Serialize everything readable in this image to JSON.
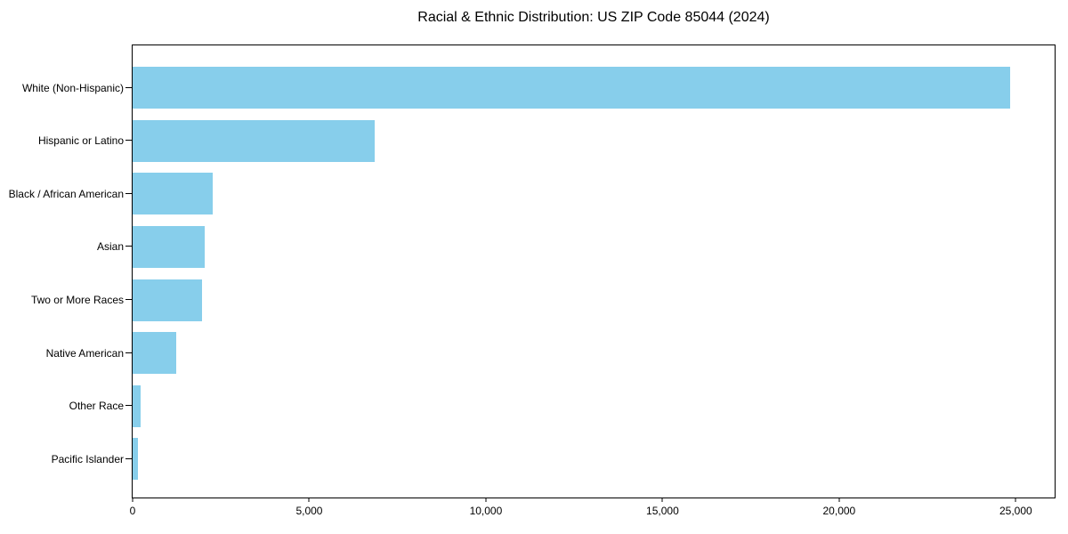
{
  "title": "Racial & Ethnic Distribution: US ZIP Code 85044 (2024)",
  "colors": {
    "bar": "#87CEEB",
    "axis": "#000000",
    "text": "#000000",
    "background": "#FFFFFF"
  },
  "chart_data": {
    "type": "bar",
    "orientation": "horizontal",
    "title": "Racial & Ethnic Distribution: US ZIP Code 85044 (2024)",
    "categories": [
      "White (Non-Hispanic)",
      "Hispanic or Latino",
      "Black / African American",
      "Asian",
      "Two or More Races",
      "Native American",
      "Other Race",
      "Pacific Islander"
    ],
    "values": [
      24850,
      6840,
      2260,
      2040,
      1960,
      1230,
      230,
      150
    ],
    "xlabel": "",
    "ylabel": "",
    "xlim": [
      0,
      26100
    ],
    "x_ticks": [
      0,
      5000,
      10000,
      15000,
      20000,
      25000
    ],
    "x_tick_labels": [
      "0",
      "5,000",
      "10,000",
      "15,000",
      "20,000",
      "25,000"
    ],
    "grid": false,
    "legend": null,
    "bar_color": "#87CEEB"
  }
}
